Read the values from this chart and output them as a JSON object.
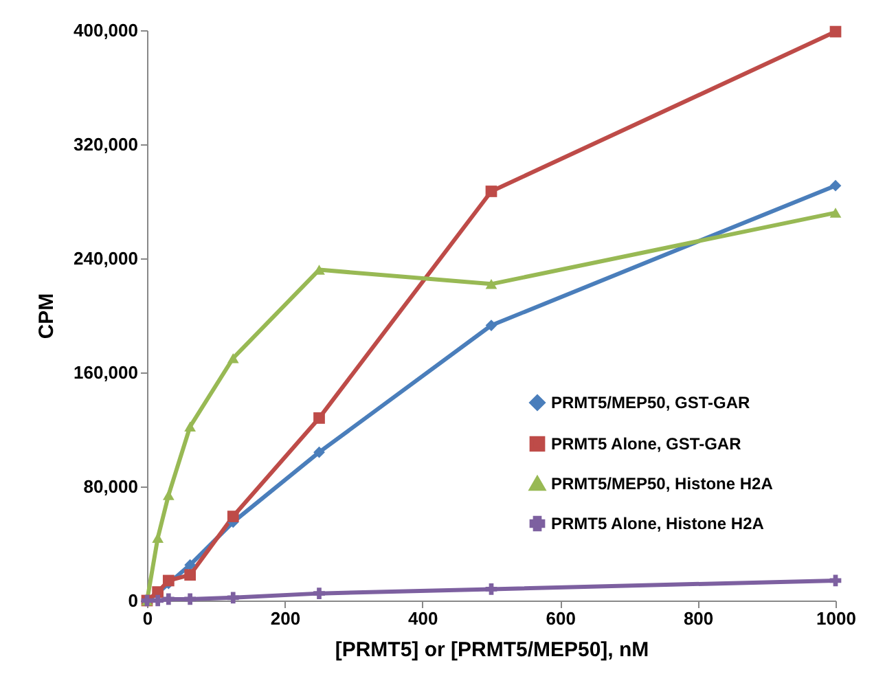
{
  "chart_data": {
    "type": "line",
    "xlabel": "[PRMT5] or [PRMT5/MEP50], nM",
    "ylabel": "CPM",
    "x": [
      0,
      15.625,
      31.25,
      62.5,
      125,
      250,
      500,
      1000
    ],
    "series": [
      {
        "name": "PRMT5/MEP50, GST-GAR",
        "color": "#4a7ebb",
        "marker": "diamond",
        "values": [
          0,
          5000,
          12000,
          25000,
          55000,
          104000,
          193000,
          291000
        ]
      },
      {
        "name": "PRMT5 Alone, GST-GAR",
        "color": "#be4b48",
        "marker": "square",
        "values": [
          0,
          6000,
          14000,
          18000,
          59000,
          128000,
          287000,
          399000
        ]
      },
      {
        "name": "PRMT5/MEP50, Histone H2A",
        "color": "#98b954",
        "marker": "triangle",
        "values": [
          0,
          44000,
          74000,
          122000,
          170000,
          232000,
          222000,
          272000
        ]
      },
      {
        "name": "PRMT5 Alone, Histone H2A",
        "color": "#7d60a0",
        "marker": "cross",
        "values": [
          0,
          0,
          1000,
          1000,
          2000,
          5000,
          8000,
          14000
        ]
      }
    ],
    "xlim": [
      0,
      1000
    ],
    "xticks": [
      0,
      200,
      400,
      600,
      800,
      1000
    ],
    "ylim": [
      0,
      400000
    ],
    "yticks": [
      0,
      {
        "value": 80000,
        "label": "80,000"
      },
      {
        "value": 160000,
        "label": "160,000"
      },
      {
        "value": 240000,
        "label": "240,000"
      },
      {
        "value": 320000,
        "label": "320,000"
      },
      {
        "value": 400000,
        "label": "400,000"
      }
    ],
    "grid": false,
    "legend": "bottom right",
    "line_style": "solid"
  }
}
